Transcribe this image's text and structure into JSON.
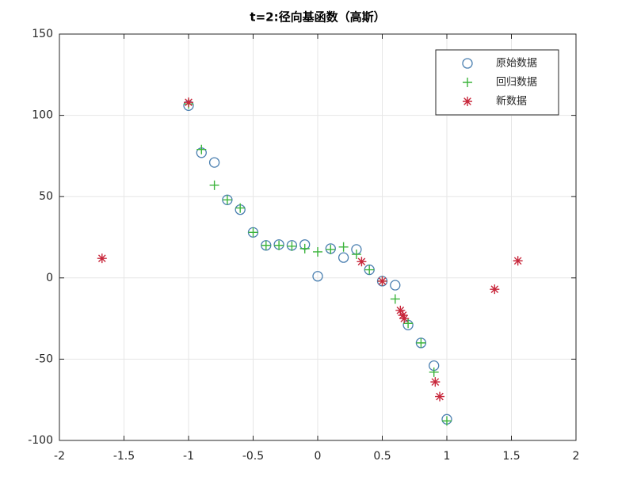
{
  "chart_data": {
    "type": "scatter",
    "title": "t=2:径向基函数（高斯）",
    "xlim": [
      -2,
      2
    ],
    "xticks": [
      -2,
      -1.5,
      -1,
      -0.5,
      0,
      0.5,
      1,
      1.5,
      2
    ],
    "ylim": [
      -100,
      150
    ],
    "yticks": [
      -100,
      -50,
      0,
      50,
      100,
      150
    ],
    "grid": true,
    "legend": "upper-right",
    "series": [
      {
        "name": "原始数据",
        "color": "#4a7fb0",
        "marker": "o",
        "x": [
          -1,
          -0.9,
          -0.8,
          -0.7,
          -0.6,
          -0.5,
          -0.4,
          -0.3,
          -0.2,
          -0.1,
          0,
          0.1,
          0.2,
          0.3,
          0.4,
          0.5,
          0.6,
          0.7,
          0.8,
          0.9,
          1
        ],
        "values": [
          106,
          77,
          71,
          48,
          42,
          28,
          20,
          20.5,
          20,
          20.5,
          1,
          18,
          12.5,
          17.5,
          5,
          -2,
          -4.5,
          -29,
          -40,
          -54,
          -87
        ]
      },
      {
        "name": "回归数据",
        "color": "#3cb43c",
        "marker": "+",
        "x": [
          -1,
          -0.9,
          -0.8,
          -0.7,
          -0.6,
          -0.5,
          -0.4,
          -0.3,
          -0.2,
          -0.1,
          0,
          0.1,
          0.2,
          0.3,
          0.4,
          0.5,
          0.6,
          0.7,
          0.8,
          0.9,
          1
        ],
        "values": [
          107,
          79,
          57,
          48,
          43,
          28,
          20,
          20,
          19.5,
          18,
          16,
          17.5,
          19,
          14.5,
          5,
          -2,
          -13,
          -28,
          -40,
          -58,
          -88
        ]
      },
      {
        "name": "新数据",
        "color": "#c8283c",
        "marker": "*",
        "x": [
          -1.67,
          -1,
          0.34,
          0.5,
          0.64,
          0.66,
          0.67,
          0.91,
          0.945,
          1.37,
          1.55
        ],
        "values": [
          12,
          108,
          10,
          -2,
          -20,
          -23,
          -25,
          -64,
          -73,
          -7,
          10.5
        ]
      }
    ]
  }
}
